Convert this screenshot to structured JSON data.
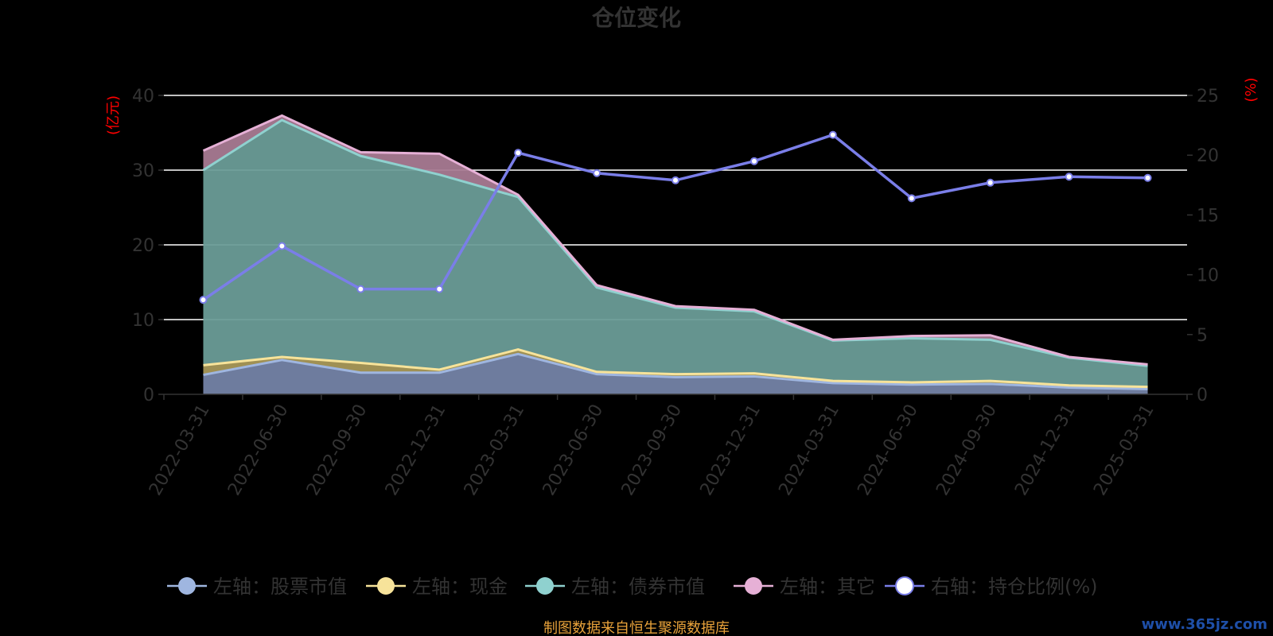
{
  "source_note": "制图数据来自恒生聚源数据库",
  "watermark": "www.365jz.com",
  "colors": {
    "stock": "#9fb6e0",
    "cash": "#f7e39a",
    "bond": "#8fd1cf",
    "other": "#e6b0d6",
    "ratio": "#7a7ee8",
    "stock_fill": "#7483a6",
    "cash_fill": "#a89859",
    "bond_fill": "#6a9c97",
    "other_fill": "#a87a92"
  },
  "chart_data": {
    "type": "area",
    "title": "仓位变化",
    "y_left_label": "(亿元)",
    "y_right_label": "(%)",
    "y_left_range": [
      0,
      40
    ],
    "y_left_ticks": [
      0,
      10,
      20,
      30,
      40
    ],
    "y_right_range": [
      0,
      25
    ],
    "y_right_ticks": [
      0,
      5,
      10,
      15,
      20,
      25
    ],
    "grid": true,
    "legend_position": "bottom",
    "x": [
      "2022-03-31",
      "2022-06-30",
      "2022-09-30",
      "2022-12-31",
      "2023-03-31",
      "2023-06-30",
      "2023-09-30",
      "2023-12-31",
      "2024-03-31",
      "2024-06-30",
      "2024-09-30",
      "2024-12-31",
      "2025-03-31"
    ],
    "series": [
      {
        "key": "stock",
        "name": "左轴：股票市值",
        "axis": "left",
        "stacked": true,
        "values": [
          2.6,
          4.6,
          2.9,
          2.9,
          5.4,
          2.7,
          2.3,
          2.4,
          1.5,
          1.3,
          1.4,
          0.9,
          0.7
        ]
      },
      {
        "key": "cash",
        "name": "左轴：现金",
        "axis": "left",
        "stacked": true,
        "values": [
          1.3,
          0.4,
          1.3,
          0.4,
          0.6,
          0.3,
          0.4,
          0.4,
          0.3,
          0.3,
          0.4,
          0.3,
          0.3
        ]
      },
      {
        "key": "bond",
        "name": "左轴：债券市值",
        "axis": "left",
        "stacked": true,
        "values": [
          26.1,
          31.7,
          27.7,
          26.1,
          20.4,
          11.3,
          8.9,
          8.3,
          5.4,
          5.9,
          5.5,
          3.7,
          2.8
        ]
      },
      {
        "key": "other",
        "name": "左轴：其它",
        "axis": "left",
        "stacked": true,
        "values": [
          2.6,
          0.6,
          0.5,
          2.8,
          0.3,
          0.3,
          0.2,
          0.2,
          0.1,
          0.3,
          0.6,
          0.1,
          0.2
        ]
      },
      {
        "key": "ratio",
        "name": "右轴：持仓比例(%)",
        "axis": "right",
        "stacked": false,
        "values": [
          7.9,
          12.4,
          8.8,
          8.8,
          20.2,
          18.5,
          17.9,
          19.5,
          21.7,
          16.4,
          17.7,
          18.2,
          18.1
        ]
      }
    ]
  }
}
